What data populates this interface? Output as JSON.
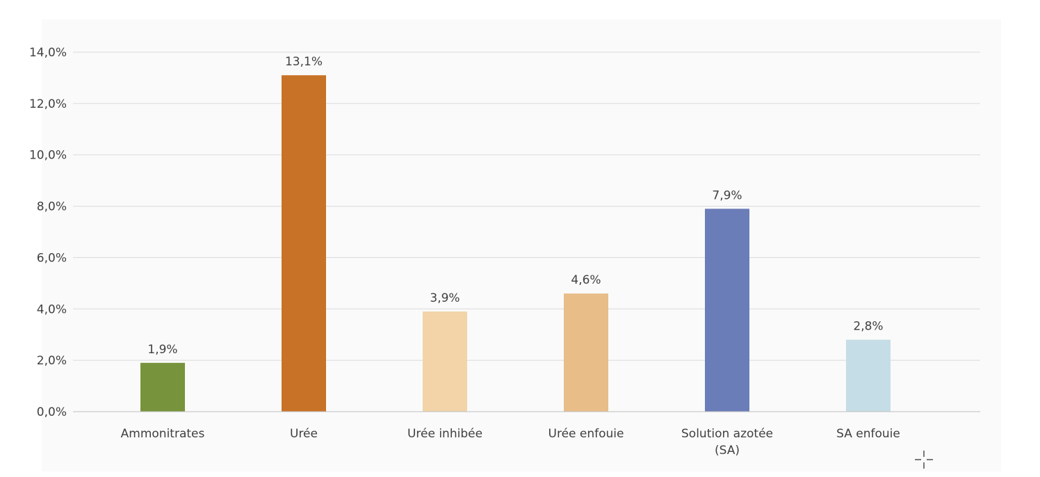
{
  "chart_data": {
    "type": "bar",
    "title": "",
    "xlabel": "",
    "ylabel": "",
    "ylim": [
      0,
      14
    ],
    "y_ticks": [
      "0,0%",
      "2,0%",
      "4,0%",
      "6,0%",
      "8,0%",
      "10,0%",
      "12,0%",
      "14,0%"
    ],
    "y_tick_values": [
      0,
      2,
      4,
      6,
      8,
      10,
      12,
      14
    ],
    "grid": true,
    "categories": [
      [
        "Ammonitrates"
      ],
      [
        "Urée"
      ],
      [
        "Urée inhibée"
      ],
      [
        "Urée enfouie"
      ],
      [
        "Solution azotée",
        "(SA)"
      ],
      [
        "SA enfouie"
      ]
    ],
    "values": [
      1.9,
      13.1,
      3.9,
      4.6,
      7.9,
      2.8
    ],
    "value_labels": [
      "1,9%",
      "13,1%",
      "3,9%",
      "4,6%",
      "7,9%",
      "2,8%"
    ],
    "colors": [
      "#77933c",
      "#c87227",
      "#f2d4a8",
      "#e8bd88",
      "#6b7db8",
      "#c5dde6"
    ]
  }
}
